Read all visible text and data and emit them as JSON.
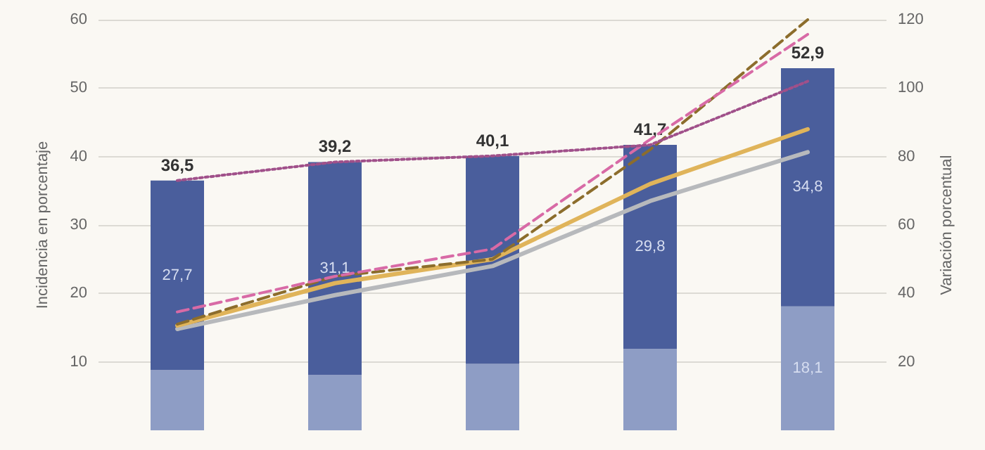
{
  "chart_data": {
    "type": "bar",
    "stacked": true,
    "ylabel": "Incidencia en porcentaje",
    "y2label": "Variación porcentual",
    "categories": [
      null,
      null,
      null,
      null,
      null
    ],
    "series": [
      {
        "color": "#8e9dc5",
        "values": [
          8.8,
          8.1,
          9.7,
          11.9,
          18.1
        ],
        "value_labels": [
          null,
          null,
          null,
          null,
          "18,1"
        ]
      },
      {
        "color": "#4a5e9c",
        "values": [
          27.7,
          31.1,
          30.4,
          29.8,
          34.8
        ],
        "value_labels": [
          "27,7",
          "31,1",
          null,
          "29,8",
          "34,8"
        ]
      },
      {
        "type": "line",
        "axis": "y2",
        "color": "#b7b9bc",
        "line_style": "solid",
        "values": [
          29.6,
          39.5,
          48,
          67,
          81.3
        ]
      },
      {
        "type": "line",
        "axis": "y2",
        "color": "#e0b45a",
        "line_style": "solid",
        "values": [
          30.6,
          43,
          50,
          72,
          88
        ]
      },
      {
        "type": "line",
        "axis": "y2",
        "color": "#8c6d2c",
        "line_style": "dashed",
        "values": [
          31,
          45,
          50,
          82,
          120
        ]
      },
      {
        "type": "line",
        "axis": "y2",
        "color": "#d86aa6",
        "line_style": "dashed",
        "values": [
          34.6,
          45,
          53,
          85,
          115.7
        ]
      },
      {
        "type": "line",
        "axis": "y2",
        "color": "#a0508a",
        "line_style": "dotted",
        "values": [
          73,
          78.4,
          80.2,
          83.4,
          102
        ]
      }
    ],
    "totals": [
      "36,5",
      "39,2",
      "40,1",
      "41,7",
      "52,9"
    ],
    "ylim": [
      0,
      60
    ],
    "yticks": [
      10,
      20,
      30,
      40,
      50,
      60
    ],
    "y2lim": [
      0,
      120
    ],
    "y2ticks": [
      20,
      40,
      60,
      80,
      100,
      120
    ],
    "grid": "y",
    "marker": "none"
  }
}
